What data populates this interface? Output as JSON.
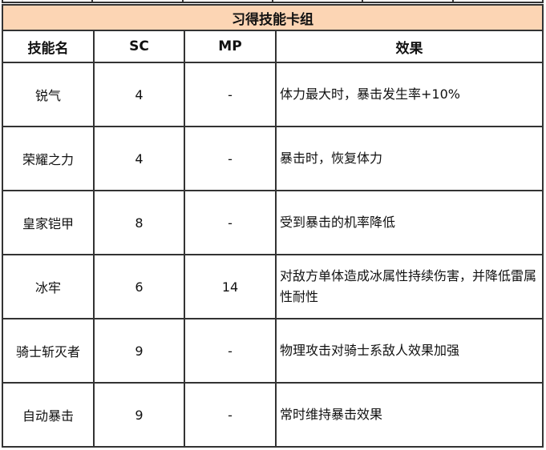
{
  "table": {
    "title": "习得技能卡组",
    "headers": [
      "技能名",
      "SC",
      "MP",
      "效果"
    ],
    "rows": [
      {
        "name": "锐气",
        "sc": "4",
        "mp": "-",
        "effect": "体力最大时，暴击发生率+10%"
      },
      {
        "name": "荣耀之力",
        "sc": "4",
        "mp": "-",
        "effect": "暴击时，恢复体力"
      },
      {
        "name": "皇家铠甲",
        "sc": "8",
        "mp": "-",
        "effect": "受到暴击的机率降低"
      },
      {
        "name": "冰牢",
        "sc": "6",
        "mp": "14",
        "effect": "对敌方单体造成冰属性持续伤害，并降低雷属性耐性"
      },
      {
        "name": "骑士斩灭者",
        "sc": "9",
        "mp": "-",
        "effect": "物理攻击对骑士系敌人效果加强"
      },
      {
        "name": "自动暴击",
        "sc": "9",
        "mp": "-",
        "effect": "常时维持暴击效果"
      }
    ]
  }
}
